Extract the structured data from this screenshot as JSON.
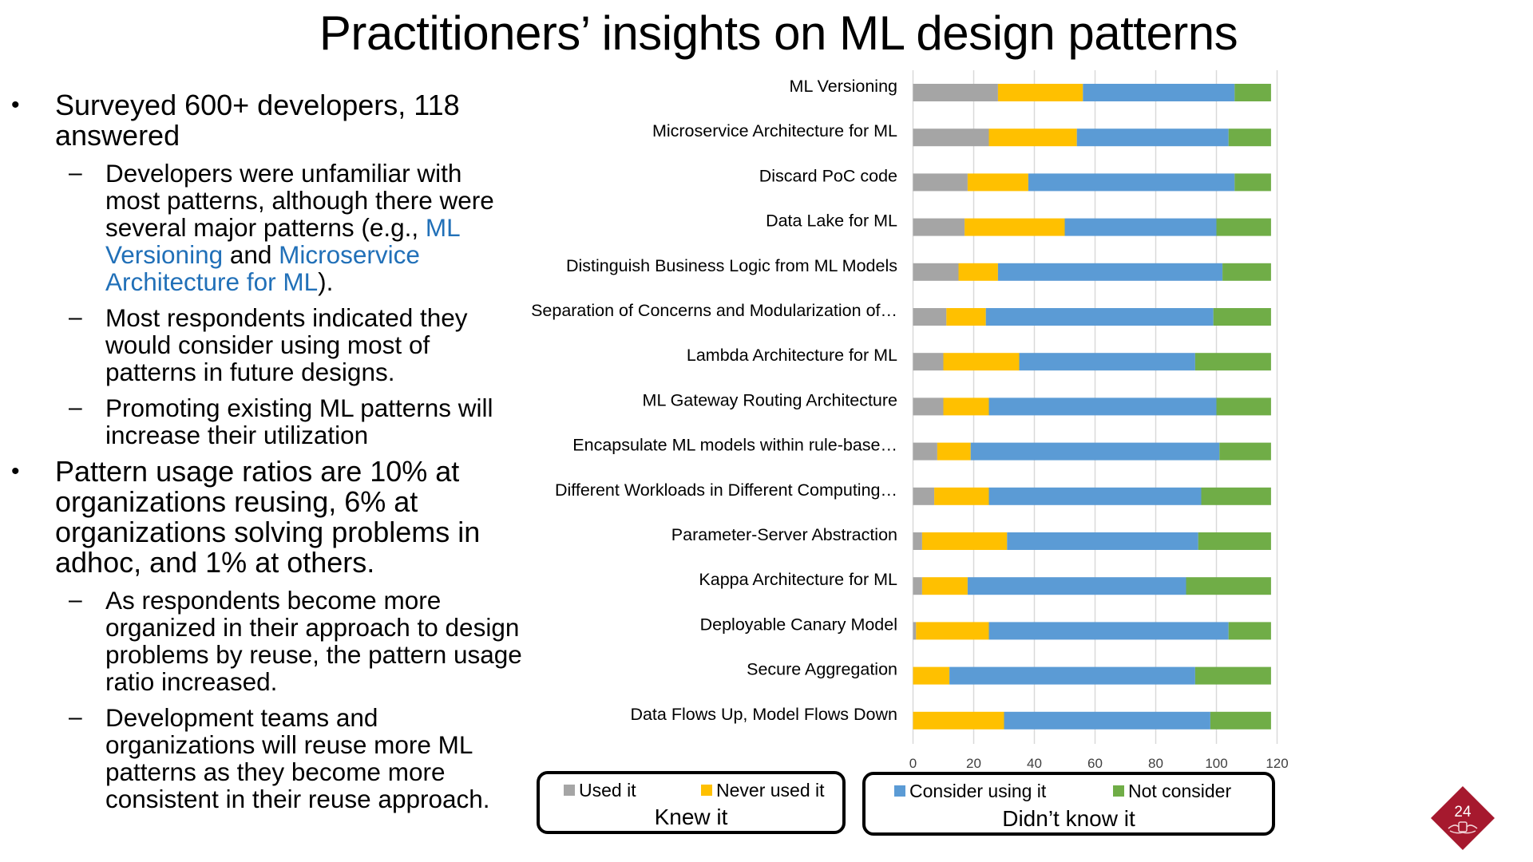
{
  "slide": {
    "title": "Practitioners’ insights on ML design patterns",
    "page_number": "24",
    "bullet_glyph": "•",
    "dash_glyph": "–",
    "bullets": [
      {
        "lines": [
          "Surveyed 600+ developers, 118",
          "answered"
        ],
        "subs": [
          {
            "lines": [
              [
                "Developers were unfamiliar with"
              ],
              [
                "most patterns, although there were"
              ],
              [
                "several major patterns (e.g., ",
                "ML"
              ],
              [
                "Versioning",
                " and ",
                "Microservice"
              ],
              [
                "Architecture for ML",
                ")."
              ]
            ]
          },
          {
            "lines": [
              [
                "Most respondents indicated they"
              ],
              [
                "would consider using most of"
              ],
              [
                "patterns in future designs."
              ]
            ]
          },
          {
            "lines": [
              [
                "Promoting existing ML patterns will"
              ],
              [
                "increase their utilization"
              ]
            ]
          }
        ]
      },
      {
        "lines": [
          "Pattern usage ratios are 10%  at",
          "organizations reusing, 6% at",
          "organizations solving problems in",
          "adhoc, and  1% at others."
        ],
        "subs": [
          {
            "lines": [
              [
                "As respondents become more"
              ],
              [
                "organized in their approach to design"
              ],
              [
                "problems by reuse, the pattern usage"
              ],
              [
                "ratio increased."
              ]
            ]
          },
          {
            "lines": [
              [
                "Development teams and"
              ],
              [
                "organizations will reuse more ML"
              ],
              [
                "patterns as they become more"
              ],
              [
                "consistent in their reuse approach."
              ]
            ]
          }
        ]
      }
    ],
    "link_color": "#2170b8",
    "badge_color": "#a6192e"
  },
  "legend": {
    "knew": {
      "caption": "Knew it",
      "items": [
        {
          "label": "Used it",
          "color": "#a5a5a5"
        },
        {
          "label": "Never used it",
          "color": "#ffc000"
        }
      ]
    },
    "didnt": {
      "caption": "Didn’t know it",
      "items": [
        {
          "label": "Consider using it",
          "color": "#5b9bd5"
        },
        {
          "label": "Not consider",
          "color": "#70ad47"
        }
      ]
    }
  },
  "chart_data": {
    "type": "bar",
    "orientation": "horizontal",
    "stacked": true,
    "title": "",
    "xlabel": "",
    "ylabel": "",
    "xlim": [
      0,
      120
    ],
    "xticks": [
      0,
      20,
      40,
      60,
      80,
      100,
      120
    ],
    "grid": true,
    "legend_position": "bottom",
    "categories": [
      "ML Versioning",
      "Microservice Architecture for ML",
      "Discard PoC code",
      "Data Lake for ML",
      "Distinguish Business Logic from ML Models",
      "Separation of Concerns and Modularization of…",
      "Lambda Architecture for ML",
      "ML Gateway Routing Architecture",
      "Encapsulate ML models within rule-base…",
      "Different Workloads in Different Computing…",
      "Parameter-Server Abstraction",
      "Kappa Architecture for ML",
      "Deployable Canary Model",
      "Secure Aggregation",
      "Data Flows Up, Model Flows Down"
    ],
    "series": [
      {
        "name": "Used it",
        "group": "Knew it",
        "color": "#a5a5a5",
        "values": [
          28,
          25,
          18,
          17,
          15,
          11,
          10,
          10,
          8,
          7,
          3,
          3,
          1,
          0,
          0
        ]
      },
      {
        "name": "Never used it",
        "group": "Knew it",
        "color": "#ffc000",
        "values": [
          28,
          29,
          20,
          33,
          13,
          13,
          25,
          15,
          11,
          18,
          28,
          15,
          24,
          12,
          30
        ]
      },
      {
        "name": "Consider using it",
        "group": "Didn’t know it",
        "color": "#5b9bd5",
        "values": [
          50,
          50,
          68,
          50,
          74,
          75,
          58,
          75,
          82,
          70,
          63,
          72,
          79,
          81,
          68
        ]
      },
      {
        "name": "Not consider",
        "group": "Didn’t know it",
        "color": "#70ad47",
        "values": [
          12,
          14,
          12,
          18,
          16,
          19,
          25,
          18,
          17,
          23,
          24,
          28,
          14,
          25,
          20
        ]
      }
    ]
  }
}
